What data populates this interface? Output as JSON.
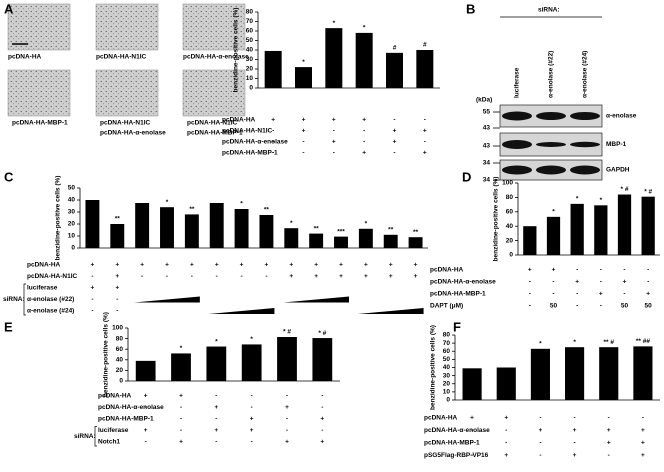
{
  "micrographs": [
    [
      "pcDNA-HA"
    ],
    [
      "pcDNA-HA-N1IC"
    ],
    [
      "pcDNA-HA-α-enolase"
    ],
    [
      "pcDNA-HA-MBP-1"
    ],
    [
      "pcDNA-HA-N1IC",
      "pcDNA-HA-α-enolase"
    ],
    [
      "pcDNA-HA-N1IC",
      "pcDNA-HA-MBP-1"
    ]
  ],
  "blot": {
    "panel": "B",
    "header": "siRNA:",
    "lanes": [
      "luciferase",
      "α-enolase (#22)",
      "α-enolase (#24)"
    ],
    "unit": "(kDa)",
    "markers": [
      55,
      43,
      43,
      34,
      34
    ],
    "bands": [
      "α-enolase",
      "MBP-1",
      "GAPDH"
    ]
  },
  "chart_data": [
    {
      "type": "bar",
      "panel": "A",
      "ylabel": "benzidine-positive cells (%)",
      "color": "#000000",
      "values": [
        39,
        22,
        63,
        58,
        37,
        40
      ],
      "annotations": [
        null,
        "*",
        "*",
        "*",
        "#",
        "#"
      ],
      "ylim": [
        0,
        80
      ],
      "yticks": [
        0,
        10,
        20,
        30,
        40,
        50,
        60,
        70,
        80
      ],
      "conditions": [
        {
          "label": "pcDNA-HA",
          "signs": [
            "+",
            "+",
            "+",
            "+",
            "-",
            "-"
          ]
        },
        {
          "label": "pcDNA-HA-N1IC",
          "signs": [
            "-",
            "+",
            "-",
            "-",
            "+",
            "+"
          ]
        },
        {
          "label": "pcDNA-HA-α-enolase",
          "signs": [
            "-",
            "-",
            "+",
            "-",
            "+",
            "-"
          ]
        },
        {
          "label": "pcDNA-HA-MBP-1",
          "signs": [
            "-",
            "-",
            "-",
            "+",
            "-",
            "+"
          ]
        }
      ]
    },
    {
      "type": "bar",
      "panel": "C",
      "ylabel": "benzidine-positive cells (%)",
      "color": "#000000",
      "values": [
        40,
        20,
        37.5,
        34,
        28,
        37.5,
        32.5,
        27.5,
        16.5,
        12,
        9.5,
        16,
        11,
        9
      ],
      "annotations": [
        null,
        "**",
        null,
        "*",
        "**",
        null,
        "*",
        "**",
        "*",
        "**",
        "***",
        "*",
        "**",
        "**"
      ],
      "ylim": [
        0,
        50
      ],
      "yticks": [
        0,
        10,
        20,
        30,
        40,
        50
      ],
      "conditions": [
        {
          "label": "pcDNA-HA",
          "signs": [
            "+",
            "+",
            "+",
            "+",
            "+",
            "+",
            "+",
            "+",
            "+",
            "+",
            "+",
            "+",
            "+",
            "+"
          ]
        },
        {
          "label": "pcDNA-HA-N1IC",
          "signs": [
            "-",
            "+",
            "-",
            "-",
            "-",
            "-",
            "-",
            "-",
            "+",
            "+",
            "+",
            "+",
            "+",
            "+"
          ]
        }
      ],
      "sirna": {
        "label": "siRNA:",
        "rows": [
          {
            "label": "luciferase",
            "signs": [
              "+",
              "+",
              null,
              null,
              null,
              null,
              null,
              null,
              null,
              null,
              null,
              null,
              null,
              null
            ]
          },
          {
            "label": "α-enolase (#22)",
            "signs": [
              "-",
              "-",
              null,
              null,
              null,
              null,
              null,
              null,
              null,
              null,
              null,
              null,
              null,
              null
            ]
          },
          {
            "label": "α-enolase (#24)",
            "signs": [
              "-",
              "-",
              null,
              null,
              null,
              null,
              null,
              null,
              null,
              null,
              null,
              null,
              null,
              null
            ]
          }
        ]
      }
    },
    {
      "type": "bar",
      "panel": "D",
      "ylabel": "benzidine-positive cells (%)",
      "color": "#000000",
      "values": [
        40,
        53,
        71,
        69,
        84,
        81
      ],
      "annotations": [
        null,
        "*",
        "*",
        "*",
        "* #",
        "* #"
      ],
      "ylim": [
        0,
        100
      ],
      "yticks": [
        0,
        20,
        40,
        60,
        80,
        100
      ],
      "conditions": [
        {
          "label": "pcDNA-HA",
          "signs": [
            "+",
            "+",
            "-",
            "-",
            "-",
            "-"
          ]
        },
        {
          "label": "pcDNA-HA-α-enolase",
          "signs": [
            "-",
            "-",
            "+",
            "-",
            "+",
            "-"
          ]
        },
        {
          "label": "pcDNA-HA-MBP-1",
          "signs": [
            "-",
            "-",
            "-",
            "+",
            "-",
            "+"
          ]
        },
        {
          "label": "DAPT (μM)",
          "signs": [
            "-",
            "50",
            "-",
            "-",
            "50",
            "50"
          ]
        }
      ]
    },
    {
      "type": "bar",
      "panel": "E",
      "ylabel": "benzidine-positive cells (%)",
      "color": "#000000",
      "values": [
        38,
        52,
        65,
        69,
        83,
        81
      ],
      "annotations": [
        null,
        "*",
        "*",
        "*",
        "* #",
        "* #"
      ],
      "ylim": [
        0,
        100
      ],
      "yticks": [
        0,
        20,
        40,
        60,
        80,
        100
      ],
      "conditions": [
        {
          "label": "pcDNA-HA",
          "signs": [
            "+",
            "+",
            "-",
            "-",
            "-",
            "-"
          ]
        },
        {
          "label": "pcDNA-HA-α-enolase",
          "signs": [
            "-",
            "-",
            "+",
            "-",
            "+",
            "-"
          ]
        },
        {
          "label": "pcDNA-HA-MBP-1",
          "signs": [
            "-",
            "-",
            "-",
            "+",
            "-",
            "+"
          ]
        }
      ],
      "sirna": {
        "label": "siRNA:",
        "rows": [
          {
            "label": "luciferase",
            "signs": [
              "+",
              "-",
              "+",
              "+",
              "-",
              "-"
            ]
          },
          {
            "label": "Notch1",
            "signs": [
              "-",
              "+",
              "-",
              "-",
              "+",
              "+"
            ]
          }
        ]
      }
    },
    {
      "type": "bar",
      "panel": "F",
      "ylabel": "benzidine-positive cells (%)",
      "color": "#000000",
      "values": [
        39,
        40,
        63,
        65,
        65,
        66
      ],
      "annotations": [
        null,
        null,
        "*",
        "*",
        "** #",
        "** ##"
      ],
      "ylim": [
        0,
        80
      ],
      "yticks": [
        0,
        10,
        20,
        30,
        40,
        50,
        60,
        70,
        80
      ],
      "conditions": [
        {
          "label": "pcDNA-HA",
          "signs": [
            "+",
            "+",
            "-",
            "-",
            "-",
            "-"
          ]
        },
        {
          "label": "pcDNA-HA-α-enolase",
          "signs": [
            "-",
            "-",
            "+",
            "+",
            "+",
            "+"
          ]
        },
        {
          "label": "pcDNA-HA-MBP-1",
          "signs": [
            "-",
            "-",
            "-",
            "-",
            "+",
            "+"
          ]
        },
        {
          "label": "pSG5Flag-RBP-VP16",
          "signs": [
            "-",
            "+",
            "-",
            "+",
            "-",
            "+"
          ]
        }
      ]
    }
  ]
}
